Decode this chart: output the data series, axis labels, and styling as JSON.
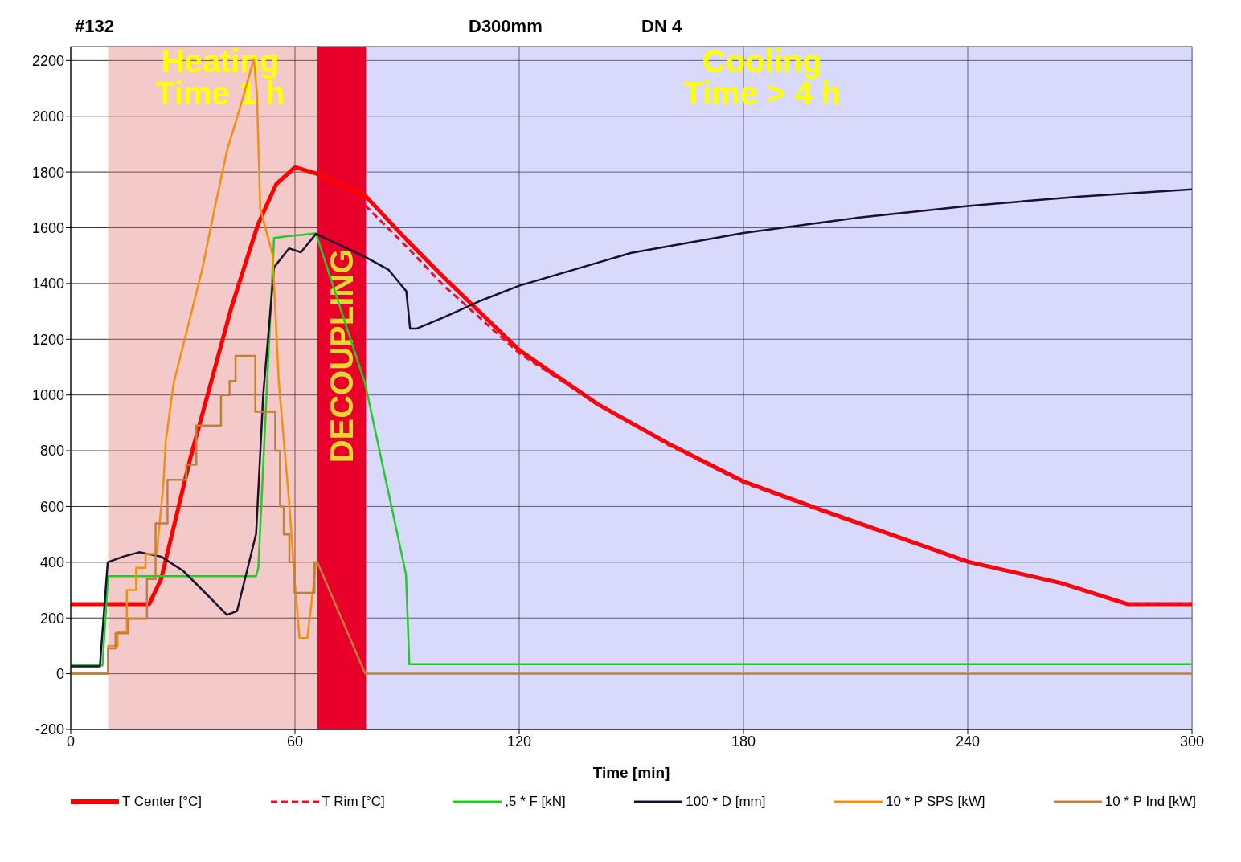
{
  "chart_data": {
    "type": "line",
    "title": "#132",
    "annotations": [
      "D300mm",
      "DN 4"
    ],
    "xlabel": "Time [min]",
    "xlim": [
      0,
      300
    ],
    "xticks": [
      0,
      60,
      120,
      180,
      240,
      300
    ],
    "ylim": [
      -200,
      2250
    ],
    "yticks": [
      -200,
      0,
      200,
      400,
      600,
      800,
      1000,
      1200,
      1400,
      1600,
      1800,
      2000,
      2200
    ],
    "grid": true,
    "legend": "bottom",
    "line_style": "solid",
    "marker": "none",
    "bands": [
      {
        "axis": "x",
        "from": 10,
        "to": 70,
        "label": "Heating\nTime 1 h",
        "color": "#e07878"
      },
      {
        "axis": "x",
        "from": 70,
        "to": 300,
        "label": "Cooling\nTime > 4 h",
        "color": "#a0a0f8"
      },
      {
        "axis": "x",
        "from": 66,
        "to": 79,
        "label": "DECOUPLING",
        "color": "#e8002a"
      }
    ],
    "series": [
      {
        "name": "T Center [°C]",
        "color": "#ff0000",
        "x": [
          0,
          10,
          21,
          24.2,
          32,
          42.9,
          50,
          55,
          60,
          65.6,
          78.8,
          90,
          100,
          120,
          141,
          160,
          180,
          202,
          240,
          265,
          282.7,
          300
        ],
        "values": [
          250,
          250,
          250,
          340,
          773,
          1310,
          1609,
          1757,
          1817,
          1795,
          1715,
          1555,
          1420,
          1161,
          967,
          825,
          690,
          582,
          402,
          325,
          250,
          250
        ]
      },
      {
        "name": "T Rim [°C]",
        "color": "#e8102a",
        "line_style": "dashed",
        "x": [
          78.8,
          90,
          100,
          120,
          140,
          160,
          180,
          202,
          240,
          265,
          282.7,
          300
        ],
        "values": [
          1680,
          1530,
          1390,
          1150,
          975,
          820,
          685,
          578,
          400,
          323,
          250,
          250
        ]
      },
      {
        "name": ",5 * F [kN]",
        "color": "#22cc22",
        "x": [
          0,
          8.5,
          10,
          20,
          30,
          40,
          49.6,
          50.2,
          54.4,
          58,
          62,
          65.6,
          78.8,
          89.7,
          90.6,
          120,
          180,
          240,
          300
        ],
        "values": [
          30,
          30,
          350,
          350,
          350,
          350,
          350,
          380,
          1563,
          1570,
          1575,
          1580,
          1039,
          357,
          34,
          34,
          34,
          34,
          34
        ]
      },
      {
        "name": "100 * D [mm]",
        "color": "#1a1030",
        "x": [
          0,
          7.8,
          9.9,
          14,
          18.3,
          24.2,
          30,
          36,
          41.8,
          44.5,
          49.6,
          51.5,
          54.4,
          58.4,
          61.6,
          65.6,
          78.8,
          85,
          89.8,
          90.8,
          92.5,
          100,
          110,
          120,
          150,
          180,
          210,
          240,
          270,
          300
        ],
        "values": [
          26,
          26,
          400,
          420,
          436,
          420,
          370,
          290,
          211,
          225,
          502,
          1000,
          1458,
          1526,
          1512,
          1578,
          1495,
          1450,
          1372,
          1238,
          1238,
          1280,
          1340,
          1392,
          1510,
          1581,
          1635,
          1678,
          1712,
          1738
        ]
      },
      {
        "name": "10 * P SPS [kW]",
        "color": "#f09010",
        "x": [
          0,
          10,
          10,
          12.5,
          12.5,
          15,
          15,
          17.5,
          17.5,
          20,
          20,
          23,
          24.8,
          25.4,
          27.5,
          30.9,
          35.3,
          38.5,
          41.8,
          45.2,
          49,
          49.8,
          50.7,
          54,
          55.7,
          58.4,
          60,
          61.2,
          63.3,
          65,
          65.6
        ],
        "values": [
          0,
          0,
          100,
          100,
          150,
          150,
          300,
          300,
          380,
          380,
          430,
          430,
          682,
          830,
          1041,
          1221,
          1458,
          1669,
          1877,
          2026,
          2205,
          2086,
          1669,
          1504,
          1041,
          622,
          322,
          128,
          128,
          322,
          400
        ]
      },
      {
        "name": "10 * P Ind [kW]",
        "color": "#c0803c",
        "x": [
          0,
          10,
          10,
          12,
          12,
          15.4,
          15.4,
          20.4,
          20.4,
          22.7,
          22.7,
          25.9,
          25.9,
          30.9,
          30.9,
          33.6,
          33.6,
          40.2,
          40.2,
          42.5,
          42.5,
          44.1,
          44.1,
          49.4,
          49.4,
          54.7,
          54.7,
          56,
          56,
          57,
          57,
          58.5,
          58.5,
          59.9,
          59.9,
          65.2,
          65.2,
          66,
          78.8,
          300
        ],
        "values": [
          0,
          0,
          91,
          91,
          145,
          145,
          197,
          197,
          340,
          340,
          539,
          539,
          696,
          696,
          750,
          750,
          890,
          890,
          1000,
          1000,
          1050,
          1050,
          1140,
          1140,
          940,
          940,
          800,
          800,
          600,
          600,
          500,
          500,
          400,
          400,
          290,
          290,
          400,
          400,
          0,
          0
        ]
      }
    ]
  }
}
